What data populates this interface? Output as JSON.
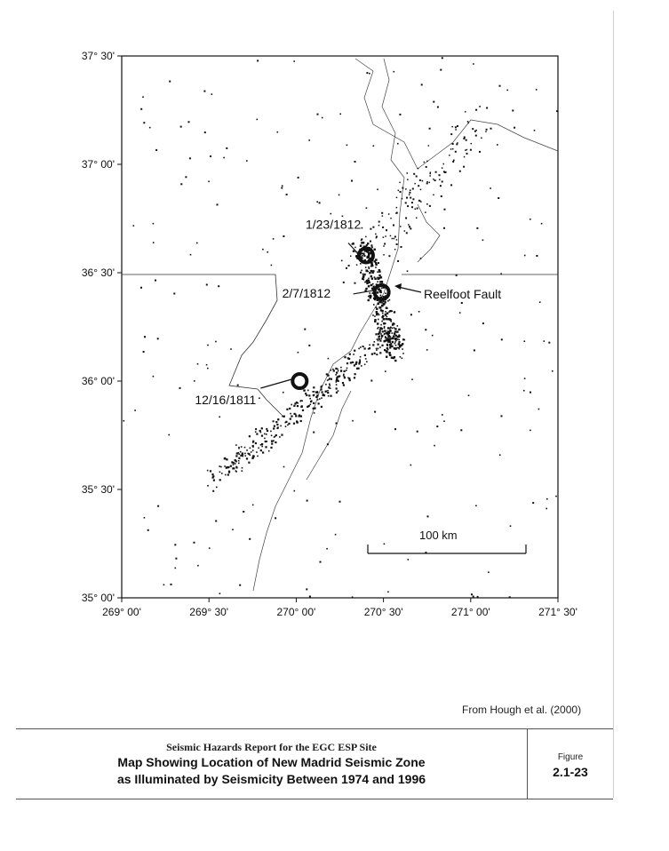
{
  "map": {
    "lat_ticks": [
      {
        "label": "37° 30'",
        "value": 37.5
      },
      {
        "label": "37° 00'",
        "value": 37.0
      },
      {
        "label": "36° 30'",
        "value": 36.5
      },
      {
        "label": "36° 00'",
        "value": 36.0
      },
      {
        "label": "35° 30'",
        "value": 35.5
      },
      {
        "label": "35° 00'",
        "value": 35.0
      }
    ],
    "lon_ticks": [
      {
        "label": "269° 00'",
        "value": 269.0
      },
      {
        "label": "269° 30'",
        "value": 269.5
      },
      {
        "label": "270° 00'",
        "value": 270.0
      },
      {
        "label": "270° 30'",
        "value": 270.5
      },
      {
        "label": "271° 00'",
        "value": 271.0
      },
      {
        "label": "271° 30'",
        "value": 271.5
      }
    ],
    "lon_range": [
      269.0,
      271.5
    ],
    "lat_range": [
      35.0,
      37.5
    ],
    "events": [
      {
        "label": "1/23/1812",
        "lon": 270.4,
        "lat": 36.58
      },
      {
        "label": "2/7/1812",
        "lon": 270.49,
        "lat": 36.41
      },
      {
        "label": "12/16/1811",
        "lon": 270.02,
        "lat": 36.0
      }
    ],
    "fault_label": "Reelfoot Fault",
    "scale_bar_label": "100 km",
    "scale_bar_km": 100,
    "seismicity_color": "#111111"
  },
  "credit": "From Hough et al. (2000)",
  "footer": {
    "report_title": "Seismic Hazards Report for the EGC ESP Site",
    "map_title_line1": "Map Showing Location of New Madrid Seismic Zone",
    "map_title_line2": "as Illuminated by Seismicity Between 1974 and 1996",
    "figure_label": "Figure",
    "figure_number": "2.1-23"
  }
}
